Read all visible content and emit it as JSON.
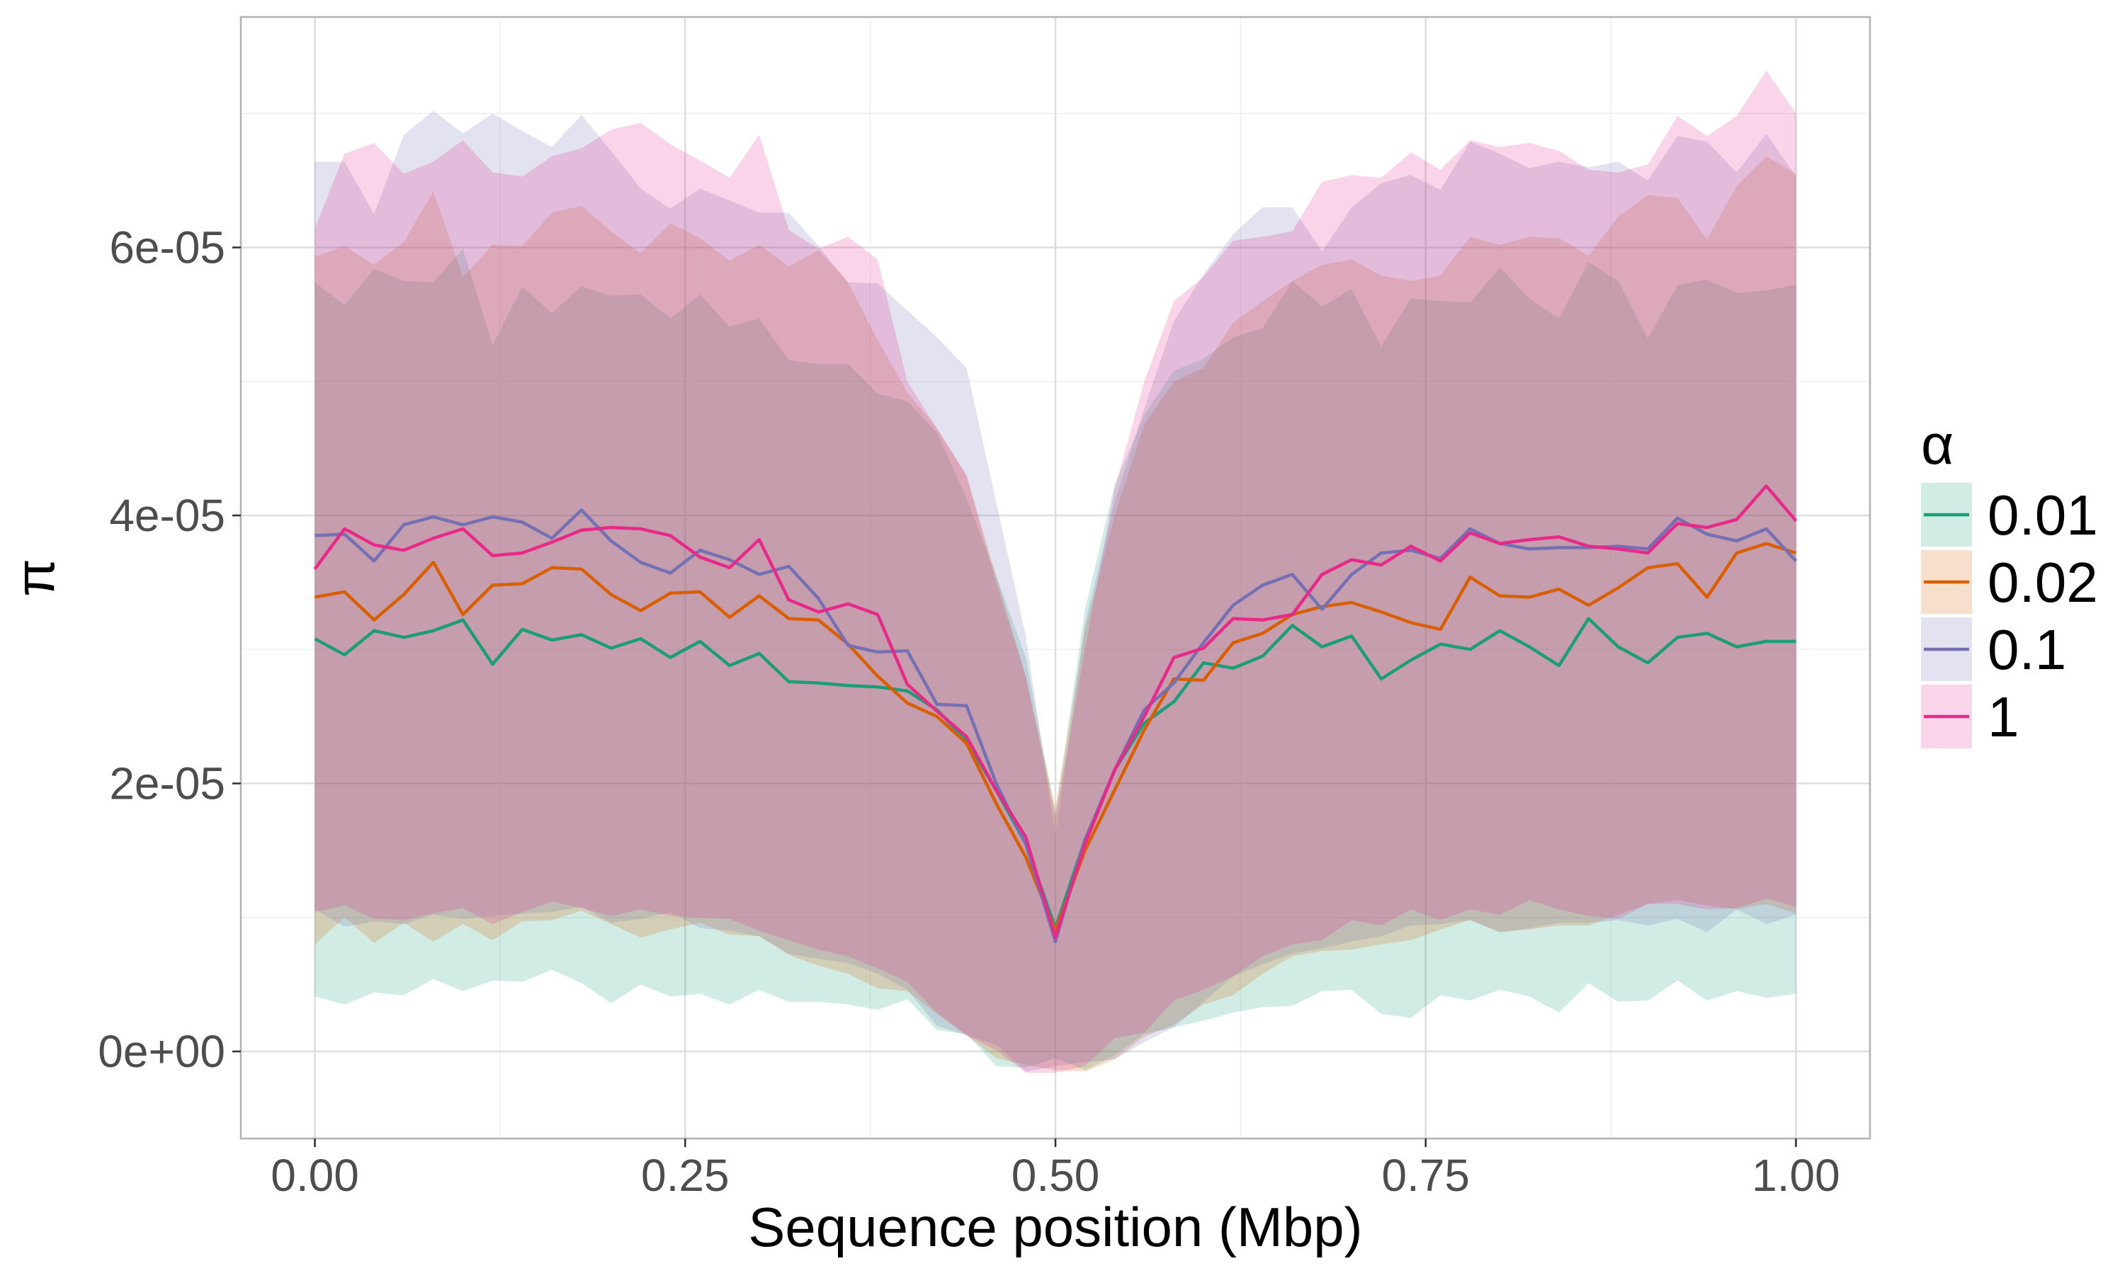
{
  "chart_data": {
    "type": "line",
    "title": "",
    "xlabel": "Sequence position (Mbp)",
    "ylabel": "π",
    "xlim": [
      -0.05,
      1.05
    ],
    "ylim": [
      -6.5e-06,
      7.72e-05
    ],
    "x_ticks": [
      0,
      0.25,
      0.5,
      0.75,
      1
    ],
    "x_tick_labels": [
      "0.00",
      "0.25",
      "0.50",
      "0.75",
      "1.00"
    ],
    "y_ticks": [
      0,
      2e-05,
      4e-05,
      6e-05
    ],
    "y_tick_labels": [
      "0e+00",
      "2e-05",
      "4e-05",
      "6e-05"
    ],
    "grid": true,
    "legend": {
      "title": "α",
      "position": "right"
    },
    "x": [
      0,
      0.02,
      0.04,
      0.06,
      0.08,
      0.1,
      0.12,
      0.14,
      0.16,
      0.18,
      0.2,
      0.22,
      0.24,
      0.26,
      0.28,
      0.3,
      0.32,
      0.34,
      0.36,
      0.38,
      0.4,
      0.42,
      0.44,
      0.46,
      0.48,
      0.5,
      0.52,
      0.54,
      0.56,
      0.58,
      0.6,
      0.62,
      0.64,
      0.66,
      0.68,
      0.7,
      0.72,
      0.74,
      0.76,
      0.78,
      0.8,
      0.82,
      0.84,
      0.86,
      0.88,
      0.9,
      0.92,
      0.94,
      0.96,
      0.98,
      1
    ],
    "series": [
      {
        "name": "0.01",
        "color": "#1B9E77",
        "mean": [
          3.08e-05,
          2.96e-05,
          3.14e-05,
          3.09e-05,
          3.14e-05,
          3.22e-05,
          2.89e-05,
          3.15e-05,
          3.07e-05,
          3.11e-05,
          3.01e-05,
          3.08e-05,
          2.94e-05,
          3.06e-05,
          2.88e-05,
          2.97e-05,
          2.76e-05,
          2.75e-05,
          2.73e-05,
          2.72e-05,
          2.69e-05,
          2.55e-05,
          2.32e-05,
          1.95e-05,
          1.55e-05,
          9.2e-06,
          1.58e-05,
          2.1e-05,
          2.45e-05,
          2.61e-05,
          2.9e-05,
          2.86e-05,
          2.95e-05,
          3.18e-05,
          3.02e-05,
          3.1e-05,
          2.78e-05,
          2.92e-05,
          3.04e-05,
          3e-05,
          3.14e-05,
          3.02e-05,
          2.88e-05,
          3.23e-05,
          3.02e-05,
          2.9e-05,
          3.09e-05,
          3.12e-05,
          3.02e-05,
          3.06e-05,
          3.06e-05
        ],
        "lower": [
          4.1e-06,
          3.5e-06,
          4.4e-06,
          4.2e-06,
          5.4e-06,
          4.5e-06,
          5.3e-06,
          5.2e-06,
          6.1e-06,
          5.1e-06,
          3.6e-06,
          5e-06,
          4.1e-06,
          4.3e-06,
          3.5e-06,
          4.6e-06,
          3.7e-06,
          3.7e-06,
          3.5e-06,
          3.1e-06,
          3.9e-06,
          1.6e-06,
          1.3e-06,
          -1.1e-06,
          -1.2e-06,
          -5e-07,
          -1.4e-06,
          -3e-07,
          1.3e-06,
          1.8e-06,
          2.3e-06,
          2.9e-06,
          3.3e-06,
          3.4e-06,
          4.5e-06,
          4.6e-06,
          2.8e-06,
          2.5e-06,
          4.2e-06,
          3.8e-06,
          4.6e-06,
          4.1e-06,
          2.9e-06,
          5.1e-06,
          3.7e-06,
          3.8e-06,
          5.3e-06,
          3.8e-06,
          4.5e-06,
          4e-06,
          4.3e-06
        ],
        "upper": [
          5.74e-05,
          5.57e-05,
          5.84e-05,
          5.75e-05,
          5.74e-05,
          5.99e-05,
          5.27e-05,
          5.71e-05,
          5.51e-05,
          5.71e-05,
          5.64e-05,
          5.65e-05,
          5.47e-05,
          5.65e-05,
          5.41e-05,
          5.47e-05,
          5.16e-05,
          5.13e-05,
          5.13e-05,
          4.91e-05,
          4.85e-05,
          4.62e-05,
          4.13e-05,
          3.55e-05,
          2.94e-05,
          1.78e-05,
          3.3e-05,
          4.23e-05,
          4.75e-05,
          5.08e-05,
          5.17e-05,
          5.33e-05,
          5.4e-05,
          5.75e-05,
          5.56e-05,
          5.69e-05,
          5.26e-05,
          5.62e-05,
          5.6e-05,
          5.59e-05,
          5.85e-05,
          5.62e-05,
          5.47e-05,
          5.89e-05,
          5.75e-05,
          5.32e-05,
          5.72e-05,
          5.76e-05,
          5.66e-05,
          5.68e-05,
          5.72e-05
        ]
      },
      {
        "name": "0.02",
        "color": "#D95F02",
        "mean": [
          3.39e-05,
          3.43e-05,
          3.22e-05,
          3.41e-05,
          3.65e-05,
          3.26e-05,
          3.48e-05,
          3.49e-05,
          3.61e-05,
          3.6e-05,
          3.41e-05,
          3.29e-05,
          3.42e-05,
          3.43e-05,
          3.24e-05,
          3.4e-05,
          3.23e-05,
          3.22e-05,
          3.04e-05,
          2.8e-05,
          2.6e-05,
          2.5e-05,
          2.3e-05,
          1.85e-05,
          1.45e-05,
          9e-06,
          1.5e-05,
          1.95e-05,
          2.4e-05,
          2.78e-05,
          2.77e-05,
          3.05e-05,
          3.12e-05,
          3.26e-05,
          3.32e-05,
          3.35e-05,
          3.28e-05,
          3.2e-05,
          3.15e-05,
          3.54e-05,
          3.4e-05,
          3.39e-05,
          3.45e-05,
          3.33e-05,
          3.46e-05,
          3.61e-05,
          3.64e-05,
          3.39e-05,
          3.72e-05,
          3.79e-05,
          3.72e-05
        ],
        "lower": [
          8e-06,
          1e-05,
          8.1e-06,
          9.6e-06,
          8.2e-06,
          9.5e-06,
          8.3e-06,
          9.7e-06,
          9.8e-06,
          1.05e-05,
          9.5e-06,
          8.5e-06,
          9.1e-06,
          9.6e-06,
          8.7e-06,
          8.6e-06,
          7.2e-06,
          6.4e-06,
          5.8e-06,
          4.7e-06,
          4.5e-06,
          2.8e-06,
          1.2e-06,
          -5e-07,
          -1e-06,
          -1.4e-06,
          -1.5e-06,
          -6e-07,
          1.1e-06,
          2e-06,
          3.5e-06,
          4.2e-06,
          5.8e-06,
          7.1e-06,
          7.5e-06,
          7.6e-06,
          8e-06,
          8.3e-06,
          9.1e-06,
          9.8e-06,
          8.9e-06,
          9.1e-06,
          9.4e-06,
          9.4e-06,
          1.02e-05,
          1.1e-05,
          1.13e-05,
          1.09e-05,
          1.06e-05,
          1.1e-05,
          1.03e-05
        ],
        "upper": [
          5.93e-05,
          6.01e-05,
          5.87e-05,
          6.04e-05,
          6.42e-05,
          5.78e-05,
          6.02e-05,
          6.01e-05,
          6.26e-05,
          6.31e-05,
          6.12e-05,
          5.96e-05,
          6.18e-05,
          6.07e-05,
          5.9e-05,
          6.02e-05,
          5.86e-05,
          5.98e-05,
          5.74e-05,
          5.31e-05,
          4.92e-05,
          4.65e-05,
          4.3e-05,
          3.55e-05,
          2.8e-05,
          1.82e-05,
          3.15e-05,
          4e-05,
          4.68e-05,
          5e-05,
          5.1e-05,
          5.44e-05,
          5.6e-05,
          5.75e-05,
          5.87e-05,
          5.91e-05,
          5.79e-05,
          5.75e-05,
          5.79e-05,
          6.08e-05,
          6.02e-05,
          6.08e-05,
          6.07e-05,
          5.94e-05,
          6.23e-05,
          6.39e-05,
          6.37e-05,
          6.06e-05,
          6.46e-05,
          6.68e-05,
          6.55e-05
        ]
      },
      {
        "name": "0.1",
        "color": "#7570B3",
        "mean": [
          3.85e-05,
          3.86e-05,
          3.66e-05,
          3.93e-05,
          3.99e-05,
          3.93e-05,
          3.99e-05,
          3.95e-05,
          3.83e-05,
          4.04e-05,
          3.81e-05,
          3.65e-05,
          3.57e-05,
          3.74e-05,
          3.67e-05,
          3.56e-05,
          3.62e-05,
          3.38e-05,
          3.03e-05,
          2.98e-05,
          2.99e-05,
          2.59e-05,
          2.58e-05,
          2e-05,
          1.55e-05,
          8.2e-06,
          1.58e-05,
          2.1e-05,
          2.55e-05,
          2.75e-05,
          3.05e-05,
          3.33e-05,
          3.48e-05,
          3.56e-05,
          3.3e-05,
          3.56e-05,
          3.72e-05,
          3.74e-05,
          3.68e-05,
          3.9e-05,
          3.79e-05,
          3.75e-05,
          3.76e-05,
          3.76e-05,
          3.77e-05,
          3.75e-05,
          3.98e-05,
          3.86e-05,
          3.81e-05,
          3.9e-05,
          3.66e-05
        ],
        "lower": [
          1.06e-05,
          9.3e-06,
          9.7e-06,
          9.5e-06,
          1.02e-05,
          9.9e-06,
          1.01e-05,
          1.03e-05,
          1.04e-05,
          1.08e-05,
          9.6e-06,
          9.9e-06,
          1.04e-05,
          9.2e-06,
          9e-06,
          8.6e-06,
          7.3e-06,
          6.9e-06,
          6.6e-06,
          5.8e-06,
          4.6e-06,
          1.9e-06,
          1.2e-06,
          5e-07,
          -1.5e-06,
          -1.1e-06,
          -8e-07,
          -6e-07,
          7e-07,
          1.8e-06,
          3.7e-06,
          5.6e-06,
          6.5e-06,
          7.3e-06,
          7.7e-06,
          8.2e-06,
          8.6e-06,
          9.4e-06,
          9.5e-06,
          9.8e-06,
          8.9e-06,
          9.2e-06,
          9.6e-06,
          9.6e-06,
          9.8e-06,
          9.4e-06,
          9.9e-06,
          8.9e-06,
          1.06e-05,
          9.5e-06,
          1.02e-05
        ],
        "upper": [
          6.64e-05,
          6.64e-05,
          6.25e-05,
          6.84e-05,
          7.02e-05,
          6.85e-05,
          7e-05,
          6.87e-05,
          6.75e-05,
          6.99e-05,
          6.72e-05,
          6.44e-05,
          6.29e-05,
          6.44e-05,
          6.35e-05,
          6.26e-05,
          6.26e-05,
          6.01e-05,
          5.74e-05,
          5.73e-05,
          5.53e-05,
          5.33e-05,
          5.1e-05,
          4.1e-05,
          3.1e-05,
          1.6e-05,
          3.2e-05,
          4.1e-05,
          4.8e-05,
          5.45e-05,
          5.8e-05,
          6.1e-05,
          6.3e-05,
          6.3e-05,
          5.97e-05,
          6.3e-05,
          6.48e-05,
          6.54e-05,
          6.43e-05,
          6.79e-05,
          6.7e-05,
          6.59e-05,
          6.64e-05,
          6.6e-05,
          6.64e-05,
          6.5e-05,
          6.83e-05,
          6.79e-05,
          6.56e-05,
          6.85e-05,
          6.53e-05
        ]
      },
      {
        "name": "1",
        "color": "#E7298A",
        "mean": [
          3.6e-05,
          3.9e-05,
          3.78e-05,
          3.74e-05,
          3.83e-05,
          3.9e-05,
          3.7e-05,
          3.72e-05,
          3.8e-05,
          3.89e-05,
          3.91e-05,
          3.9e-05,
          3.85e-05,
          3.69e-05,
          3.61e-05,
          3.82e-05,
          3.37e-05,
          3.28e-05,
          3.34e-05,
          3.26e-05,
          2.74e-05,
          2.54e-05,
          2.35e-05,
          1.95e-05,
          1.6e-05,
          8.5e-06,
          1.55e-05,
          2.1e-05,
          2.5e-05,
          2.94e-05,
          3.01e-05,
          3.23e-05,
          3.22e-05,
          3.26e-05,
          3.56e-05,
          3.67e-05,
          3.63e-05,
          3.77e-05,
          3.66e-05,
          3.87e-05,
          3.79e-05,
          3.82e-05,
          3.84e-05,
          3.77e-05,
          3.75e-05,
          3.72e-05,
          3.94e-05,
          3.91e-05,
          3.97e-05,
          4.22e-05,
          3.96e-05
        ],
        "lower": [
          1.04e-05,
          1.09e-05,
          9.9e-06,
          9.8e-06,
          1.03e-05,
          1.07e-05,
          9.5e-06,
          1.04e-05,
          1.12e-05,
          1.07e-05,
          1.01e-05,
          1.06e-05,
          1.01e-05,
          1e-05,
          9.9e-06,
          9e-06,
          8.3e-06,
          7.6e-06,
          7.1e-06,
          6.2e-06,
          5.2e-06,
          2.9e-06,
          1.2e-06,
          1e-07,
          -1.6e-06,
          -1.6e-06,
          -1.1e-06,
          1e-06,
          1.4e-06,
          3.8e-06,
          4.6e-06,
          5.6e-06,
          7.1e-06,
          8e-06,
          8.3e-06,
          9.8e-06,
          9.4e-06,
          1.06e-05,
          9.8e-06,
          1.06e-05,
          1.02e-05,
          1.13e-05,
          1.06e-05,
          1.01e-05,
          9.9e-06,
          1.1e-05,
          1.1e-05,
          1.06e-05,
          1.07e-05,
          1.14e-05,
          1.08e-05
        ],
        "upper": [
          6.14e-05,
          6.7e-05,
          6.78e-05,
          6.55e-05,
          6.64e-05,
          6.8e-05,
          6.56e-05,
          6.53e-05,
          6.68e-05,
          6.74e-05,
          6.88e-05,
          6.93e-05,
          6.77e-05,
          6.65e-05,
          6.52e-05,
          6.84e-05,
          6.13e-05,
          5.99e-05,
          6.08e-05,
          5.91e-05,
          5e-05,
          4.65e-05,
          4.3e-05,
          3.5e-05,
          2.8e-05,
          1.75e-05,
          3e-05,
          4.2e-05,
          5e-05,
          5.6e-05,
          5.78e-05,
          6.05e-05,
          6.08e-05,
          6.12e-05,
          6.49e-05,
          6.54e-05,
          6.52e-05,
          6.71e-05,
          6.58e-05,
          6.8e-05,
          6.75e-05,
          6.78e-05,
          6.72e-05,
          6.58e-05,
          6.56e-05,
          6.62e-05,
          6.98e-05,
          6.83e-05,
          6.98e-05,
          7.32e-05,
          7e-05
        ]
      }
    ]
  }
}
